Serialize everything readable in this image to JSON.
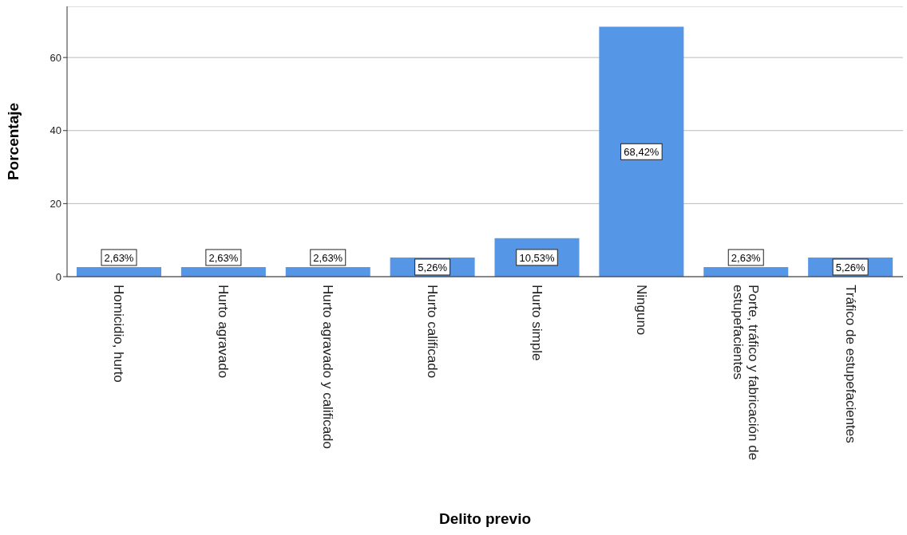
{
  "chart_data": {
    "type": "bar",
    "xlabel": "Delito previo",
    "ylabel": "Porcentaje",
    "categories": [
      "Homicidio, hurto",
      "Hurto agravado",
      "Hurto agravado y calificado",
      "Hurto calificado",
      "Hurto simple",
      "Ninguno",
      "Porte, tráfico y fabricación de estupefacientes",
      "Tráfico de estupefacientes"
    ],
    "values": [
      2.63,
      2.63,
      2.63,
      5.26,
      10.53,
      68.42,
      2.63,
      5.26
    ],
    "value_labels": [
      "2,63%",
      "2,63%",
      "2,63%",
      "5,26%",
      "10,53%",
      "68,42%",
      "2,63%",
      "5,26%"
    ],
    "color": "#5596e6",
    "ylim": [
      0,
      74
    ],
    "yticks": [
      0,
      20,
      40,
      60
    ],
    "grid": "y"
  }
}
